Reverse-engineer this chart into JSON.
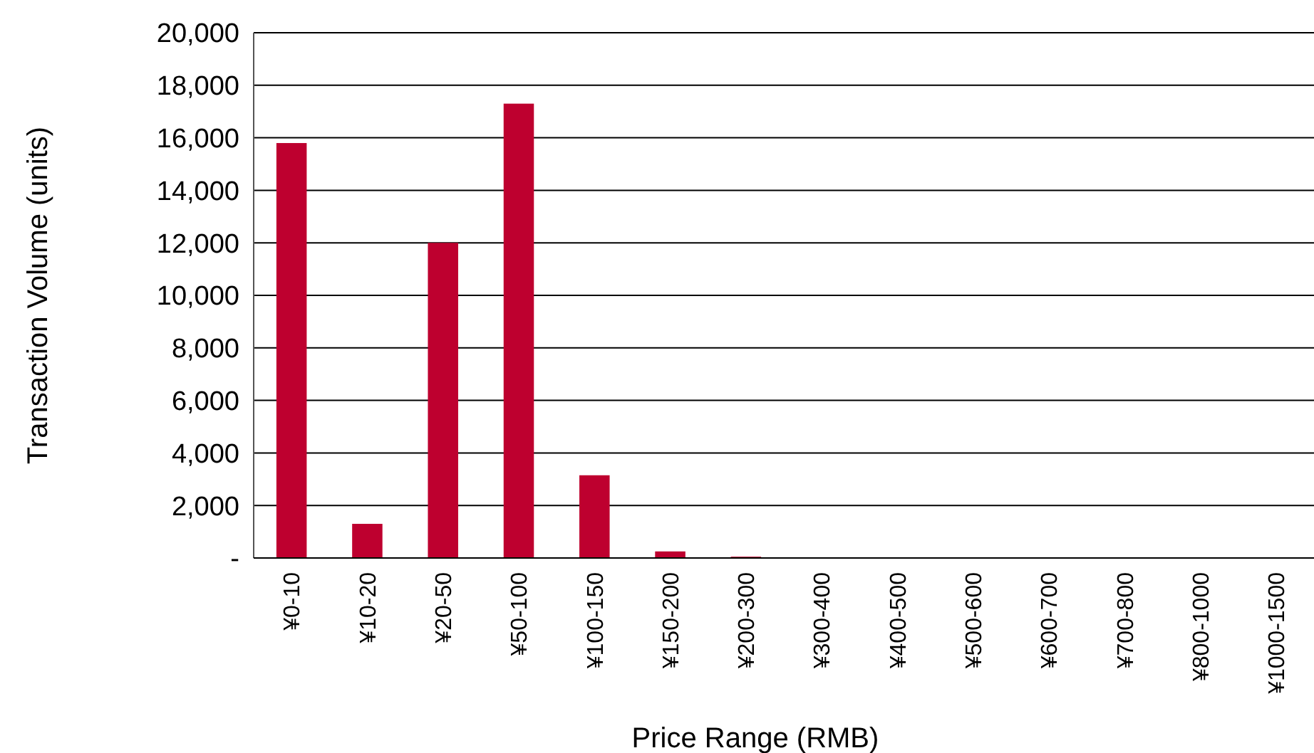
{
  "chart_data": {
    "type": "bar",
    "xlabel": "Price Range (RMB)",
    "ylabel": "Transaction Volume (units)",
    "categories": [
      "¥0-10",
      "¥10-20",
      "¥20-50",
      "¥50-100",
      "¥100-150",
      "¥150-200",
      "¥200-300",
      "¥300-400",
      "¥400-500",
      "¥500-600",
      "¥600-700",
      "¥700-800",
      "¥800-1000",
      "¥1000-1500"
    ],
    "values": [
      15800,
      1300,
      12000,
      17300,
      3150,
      250,
      50,
      0,
      0,
      0,
      0,
      0,
      0,
      0
    ],
    "color": "#be002f",
    "ylim": [
      0,
      20000
    ],
    "yticks": [
      {
        "value": 0,
        "label": "-"
      },
      {
        "value": 2000,
        "label": "2,000"
      },
      {
        "value": 4000,
        "label": "4,000"
      },
      {
        "value": 6000,
        "label": "6,000"
      },
      {
        "value": 8000,
        "label": "8,000"
      },
      {
        "value": 10000,
        "label": "10,000"
      },
      {
        "value": 12000,
        "label": "12,000"
      },
      {
        "value": 14000,
        "label": "14,000"
      },
      {
        "value": 16000,
        "label": "16,000"
      },
      {
        "value": 18000,
        "label": "18,000"
      },
      {
        "value": 20000,
        "label": "20,000"
      }
    ],
    "grid": "y"
  }
}
